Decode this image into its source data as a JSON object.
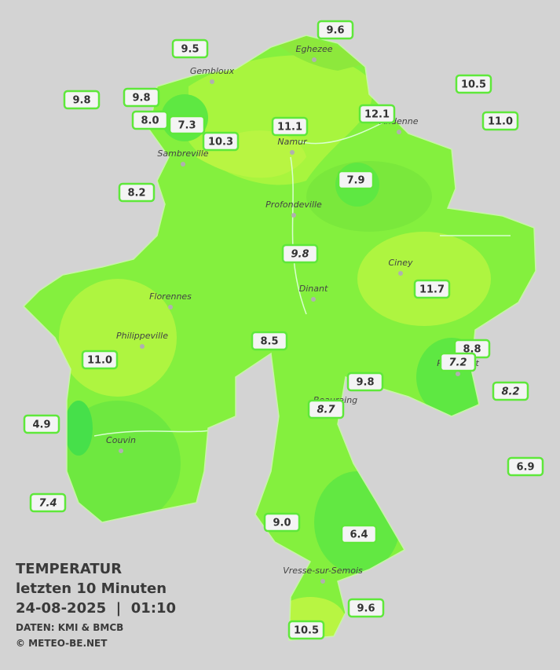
{
  "stations": [
    "9.6",
    "9.5",
    "10.5",
    "9.8",
    "9.8",
    "11.0",
    "12.1",
    "8.0",
    "7.3",
    "11.1",
    "10.3",
    "8.2",
    "7.9",
    "9.8",
    "11.7",
    "8.5",
    "11.0",
    "8.8",
    "7.2",
    "8.2",
    "9.8",
    "8.7",
    "4.9",
    "6.9",
    "7.4",
    "9.0",
    "6.4",
    "9.6",
    "10.5"
  ],
  "cities": [
    "Eghezee",
    "Gembloux",
    "Andenne",
    "Namur",
    "Sambreville",
    "Profondeville",
    "Ciney",
    "Dinant",
    "Florennes",
    "Philippeville",
    "Rochefort",
    "Beauraing",
    "Couvin",
    "Vresse-sur-Semois"
  ],
  "legend": {
    "title": "TEMPERATUR",
    "period": "letzten 10 Minuten",
    "datetime": "24-08-2025  |  01:10",
    "source": "DATEN: KMI & BMCB",
    "copyright": "© METEO-BE.NET"
  }
}
